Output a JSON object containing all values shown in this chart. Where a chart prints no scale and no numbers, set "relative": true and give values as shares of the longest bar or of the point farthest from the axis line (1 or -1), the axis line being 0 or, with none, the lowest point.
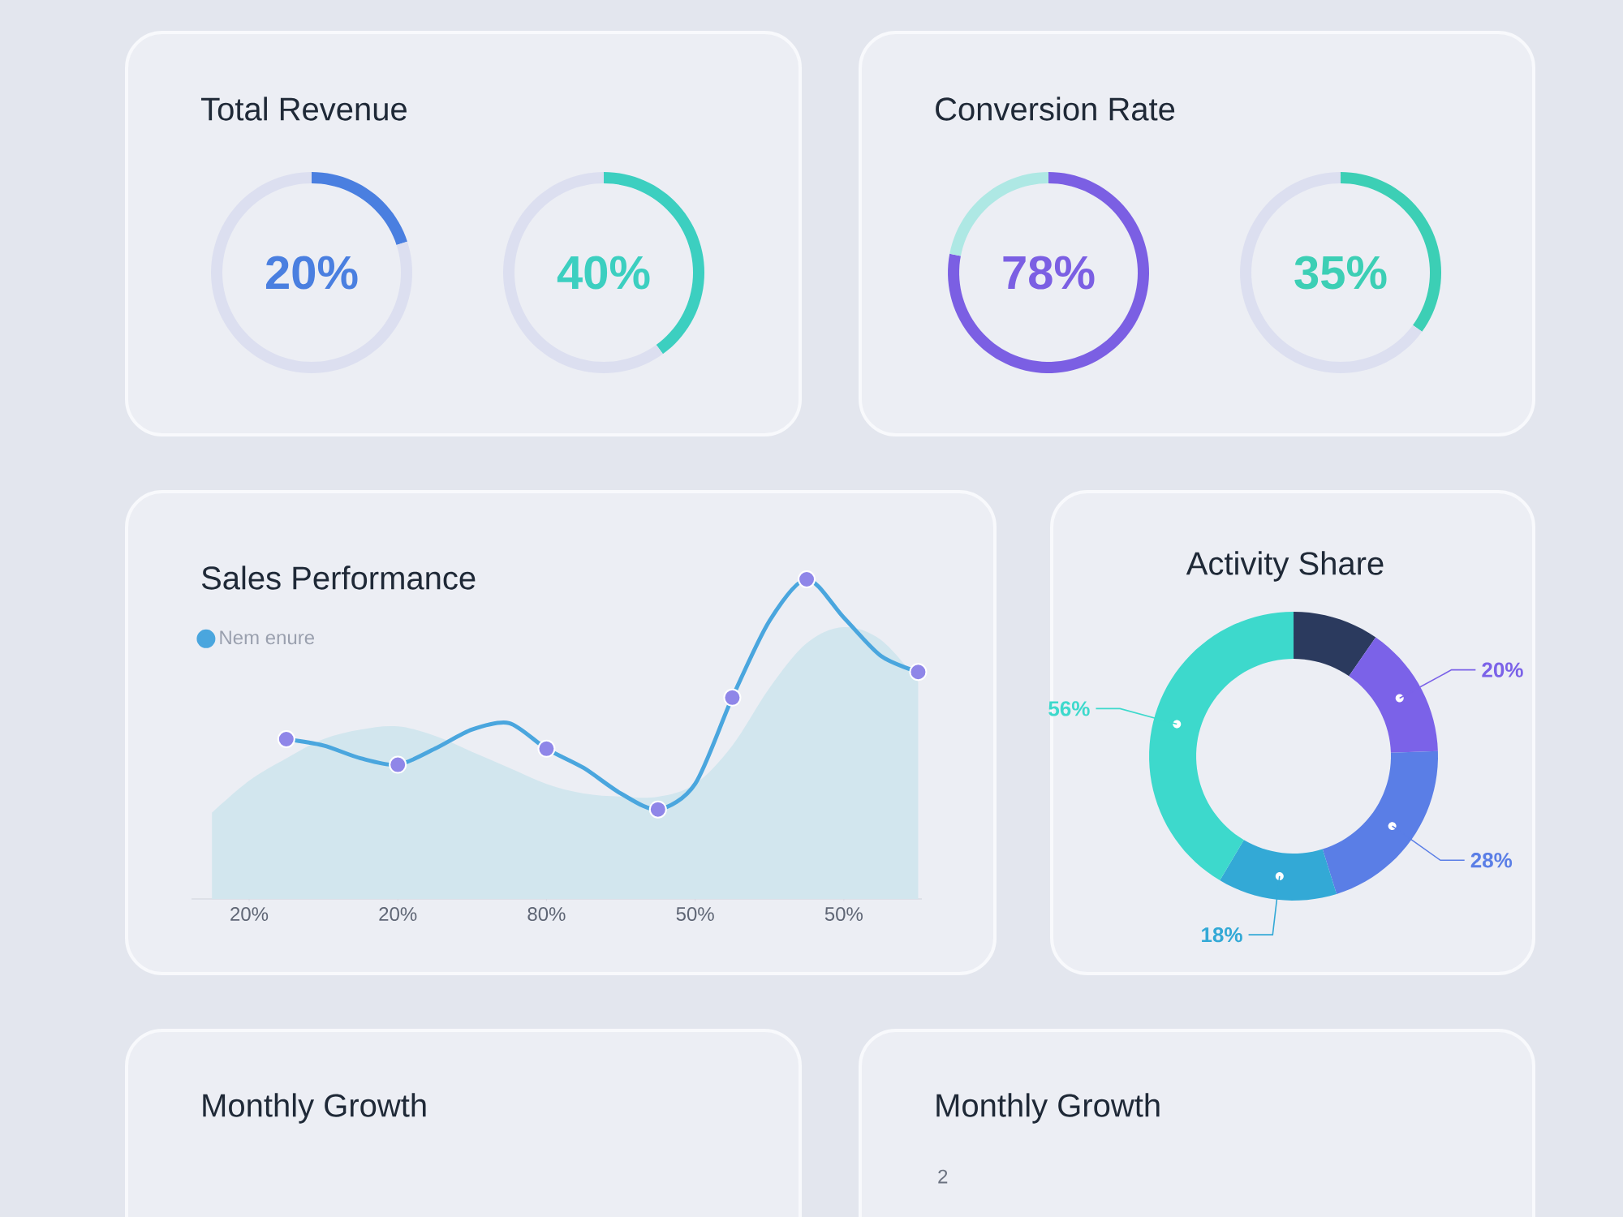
{
  "chart_data": [
    {
      "type": "donut",
      "title": "Total Revenue",
      "categories": [
        null,
        null
      ],
      "values": [
        20,
        80
      ],
      "colors": [
        "#4a7fe0",
        "#dcdff0"
      ],
      "annotations": [
        "20%"
      ]
    },
    {
      "type": "donut",
      "categories": [
        null,
        null
      ],
      "values": [
        40,
        60
      ],
      "colors": [
        "#3ccfc0",
        "#dcdff0"
      ],
      "annotations": [
        "40%"
      ]
    },
    {
      "type": "donut",
      "title": "Conversion Rate",
      "categories": [
        null,
        null
      ],
      "values": [
        78,
        22
      ],
      "colors": [
        "#7b5fe3",
        "#aee8e4"
      ],
      "annotations": [
        "78%"
      ]
    },
    {
      "type": "donut",
      "categories": [
        null,
        null
      ],
      "values": [
        35,
        65
      ],
      "colors": [
        "#3ccfb5",
        "#dcdff0"
      ],
      "annotations": [
        "35%"
      ]
    },
    {
      "type": "line",
      "title": "Sales Performance",
      "relative": true,
      "categories": [
        null,
        "20%",
        null,
        null,
        null,
        "20%",
        null,
        null,
        null,
        "80%",
        null,
        null,
        null,
        "50%",
        null,
        null,
        null,
        "50%",
        null,
        null
      ],
      "legend": "top left",
      "series": [
        {
          "type": "area",
          "color": "#d2e6ee",
          "values": [
            0.27,
            0.37,
            0.44,
            0.5,
            0.53,
            0.54,
            0.51,
            0.46,
            0.41,
            0.36,
            0.33,
            0.32,
            0.32,
            0.36,
            0.48,
            0.66,
            0.8,
            0.85,
            0.81,
            0.68
          ]
        },
        {
          "name": "Nem enure",
          "color": "#4aa6de",
          "values": [
            null,
            null,
            0.5,
            0.48,
            0.44,
            0.42,
            0.47,
            0.53,
            0.55,
            0.47,
            0.41,
            0.33,
            0.28,
            0.36,
            0.63,
            0.87,
            1.0,
            0.88,
            0.76,
            0.71
          ]
        },
        {
          "type": "scatter",
          "color": "#8f86e8",
          "marker": "circle",
          "values": [
            null,
            null,
            0.5,
            null,
            null,
            0.42,
            null,
            null,
            null,
            0.47,
            null,
            null,
            0.28,
            null,
            0.63,
            null,
            1.0,
            null,
            null,
            0.71
          ]
        }
      ]
    },
    {
      "type": "donut",
      "title": "Activity Share",
      "categories": [
        null,
        null,
        null,
        null,
        null
      ],
      "values": [
        13,
        20,
        28,
        18,
        56
      ],
      "colors": [
        "#2b3a5e",
        "#7b62e8",
        "#5a7ee6",
        "#33a9d6",
        "#3dd9cc"
      ],
      "value_labels": [
        null,
        "20%",
        "28%",
        "18%",
        "56%"
      ]
    },
    {
      "type": "other",
      "title": "Monthly Growth"
    },
    {
      "type": "other",
      "title": "Monthly Growth",
      "annotations": [
        "2"
      ]
    }
  ]
}
